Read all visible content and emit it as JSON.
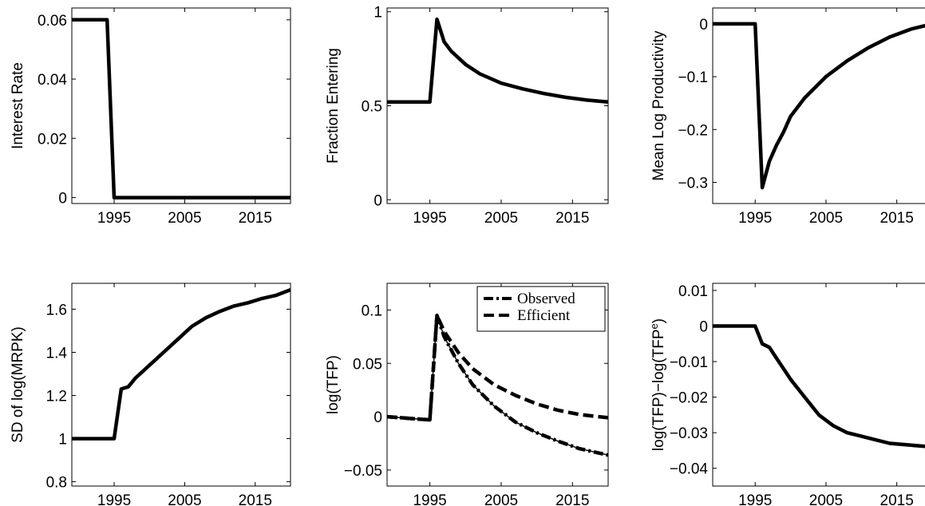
{
  "chart_data": [
    {
      "type": "line",
      "ylabel": "Interest Rate",
      "xlim": [
        1989,
        2020
      ],
      "ylim": [
        -0.002,
        0.064
      ],
      "xticks": [
        1995,
        2005,
        2015
      ],
      "yticks": [
        0,
        0.02,
        0.04,
        0.06
      ],
      "ytick_labels": [
        "0",
        "0.02",
        "0.04",
        "0.06"
      ],
      "series": [
        {
          "style": "solid",
          "x": [
            1989,
            1994,
            1995,
            2020
          ],
          "y": [
            0.06,
            0.06,
            0,
            0
          ]
        }
      ]
    },
    {
      "type": "line",
      "ylabel": "Fraction Entering",
      "xlim": [
        1989,
        2020
      ],
      "ylim": [
        -0.02,
        1.02
      ],
      "xticks": [
        1995,
        2005,
        2015
      ],
      "yticks": [
        0,
        0.5,
        1
      ],
      "ytick_labels": [
        "0",
        "0.5",
        "1"
      ],
      "series": [
        {
          "style": "solid",
          "x": [
            1989,
            1995,
            1996,
            1997,
            1998,
            2000,
            2002,
            2005,
            2008,
            2011,
            2014,
            2017,
            2020
          ],
          "y": [
            0.52,
            0.52,
            0.96,
            0.84,
            0.79,
            0.72,
            0.67,
            0.62,
            0.59,
            0.565,
            0.545,
            0.53,
            0.52
          ]
        }
      ]
    },
    {
      "type": "line",
      "ylabel": "Mean Log Productivity",
      "xlim": [
        1989,
        2020
      ],
      "ylim": [
        -0.34,
        0.03
      ],
      "xticks": [
        1995,
        2005,
        2015
      ],
      "yticks": [
        0,
        -0.1,
        -0.2,
        -0.3
      ],
      "ytick_labels": [
        "0",
        "−0.1",
        "−0.2",
        "−0.3"
      ],
      "series": [
        {
          "style": "solid",
          "x": [
            1989,
            1995,
            1996,
            1997,
            1998,
            1999,
            2000,
            2002,
            2005,
            2008,
            2011,
            2014,
            2017,
            2020
          ],
          "y": [
            0,
            0,
            -0.31,
            -0.26,
            -0.23,
            -0.205,
            -0.175,
            -0.14,
            -0.1,
            -0.07,
            -0.045,
            -0.025,
            -0.01,
            0
          ]
        }
      ]
    },
    {
      "type": "line",
      "ylabel": "SD of log(MRPK)",
      "xlim": [
        1989,
        2020
      ],
      "ylim": [
        0.78,
        1.72
      ],
      "xticks": [
        1995,
        2005,
        2015
      ],
      "yticks": [
        0.8,
        1,
        1.2,
        1.4,
        1.6
      ],
      "ytick_labels": [
        "0.8",
        "1",
        "1.2",
        "1.4",
        "1.6"
      ],
      "series": [
        {
          "style": "solid",
          "x": [
            1989,
            1995,
            1996,
            1997,
            1998,
            2000,
            2002,
            2004,
            2006,
            2008,
            2010,
            2012,
            2014,
            2016,
            2018,
            2020
          ],
          "y": [
            1,
            1,
            1.23,
            1.24,
            1.28,
            1.34,
            1.4,
            1.46,
            1.52,
            1.56,
            1.59,
            1.615,
            1.63,
            1.65,
            1.665,
            1.69
          ]
        }
      ]
    },
    {
      "type": "line",
      "ylabel": "log(TFP)",
      "xlim": [
        1989,
        2020
      ],
      "ylim": [
        -0.065,
        0.125
      ],
      "xticks": [
        1995,
        2005,
        2015
      ],
      "yticks": [
        -0.05,
        0,
        0.05,
        0.1
      ],
      "ytick_labels": [
        "−0.05",
        "0",
        "0.05",
        "0.1"
      ],
      "legend": {
        "position": "top-right"
      },
      "series": [
        {
          "name": "Observed",
          "style": "dashdot",
          "x": [
            1989,
            1993,
            1995,
            1996,
            1997,
            1999,
            2001,
            2004,
            2007,
            2010,
            2013,
            2016,
            2020
          ],
          "y": [
            0,
            -0.002,
            -0.003,
            0.095,
            0.075,
            0.05,
            0.03,
            0.01,
            -0.005,
            -0.015,
            -0.023,
            -0.03,
            -0.036
          ]
        },
        {
          "name": "Efficient",
          "style": "dashed",
          "x": [
            1989,
            1993,
            1995,
            1996,
            1997,
            1999,
            2001,
            2004,
            2007,
            2010,
            2013,
            2016,
            2020
          ],
          "y": [
            0,
            -0.002,
            -0.003,
            0.095,
            0.08,
            0.06,
            0.045,
            0.03,
            0.02,
            0.012,
            0.006,
            0.002,
            -0.001
          ]
        }
      ]
    },
    {
      "type": "line",
      "ylabel": "log(TFP)−log(TFP",
      "ylabel_sup": "e",
      "ylabel_close": ")",
      "xlim": [
        1989,
        2020
      ],
      "ylim": [
        -0.045,
        0.012
      ],
      "xticks": [
        1995,
        2005,
        2015
      ],
      "yticks": [
        0.01,
        0,
        -0.01,
        -0.02,
        -0.03,
        -0.04
      ],
      "ytick_labels": [
        "0.01",
        "0",
        "−0.01",
        "−0.02",
        "−0.03",
        "−0.04"
      ],
      "series": [
        {
          "style": "solid",
          "x": [
            1989,
            1995,
            1996,
            1997,
            1998,
            1999,
            2000,
            2002,
            2004,
            2006,
            2008,
            2010,
            2012,
            2014,
            2017,
            2020
          ],
          "y": [
            0,
            0,
            -0.005,
            -0.006,
            -0.009,
            -0.012,
            -0.015,
            -0.02,
            -0.025,
            -0.028,
            -0.03,
            -0.031,
            -0.032,
            -0.033,
            -0.0335,
            -0.034
          ]
        }
      ]
    }
  ]
}
